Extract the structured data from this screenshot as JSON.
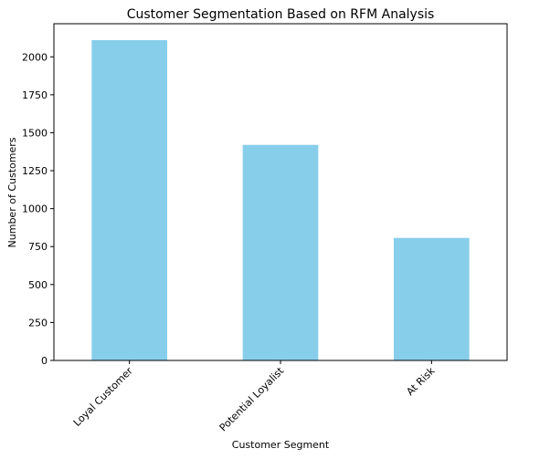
{
  "chart_data": {
    "type": "bar",
    "title": "Customer Segmentation Based on RFM Analysis",
    "xlabel": "Customer Segment",
    "ylabel": "Number of Customers",
    "categories": [
      "Loyal Customer",
      "Potential Loyalist",
      "At Risk"
    ],
    "values": [
      2110,
      1420,
      807
    ],
    "ylim": [
      0,
      2218
    ],
    "yticks": [
      0,
      250,
      500,
      750,
      1000,
      1250,
      1500,
      1750,
      2000
    ],
    "ytick_labels": [
      "0",
      "250",
      "500",
      "750",
      "1000",
      "1250",
      "1500",
      "1750",
      "2000"
    ],
    "xtick_rotation_deg": 45,
    "grid": false,
    "bar_color": "#87CEEB"
  }
}
